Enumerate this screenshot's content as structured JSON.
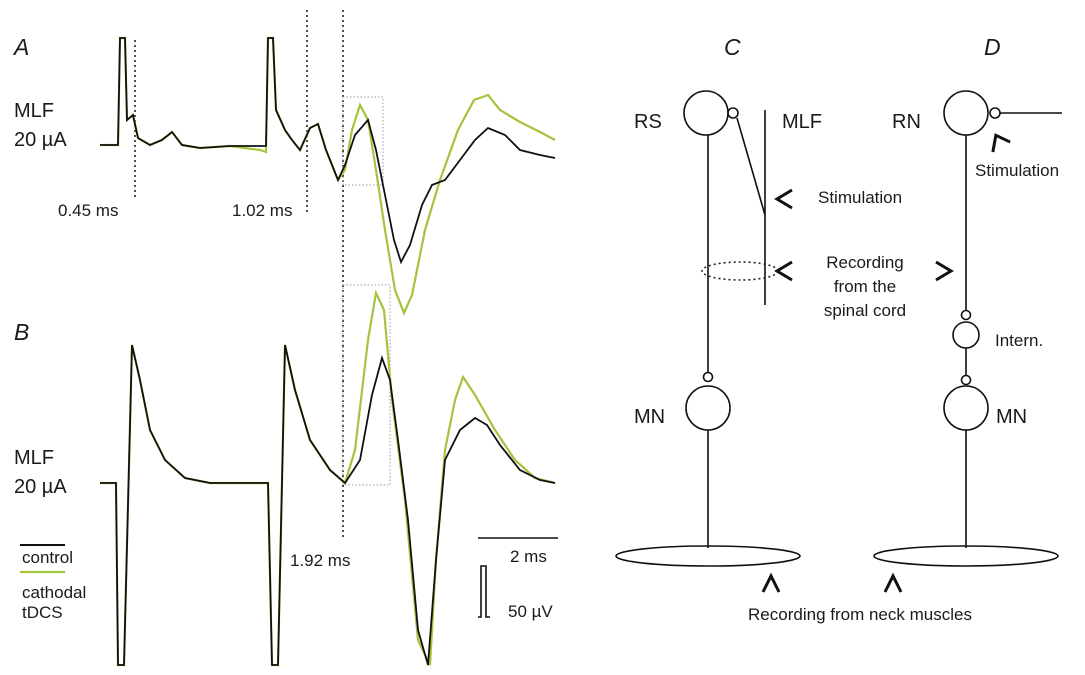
{
  "panel_a": {
    "label": "A",
    "stimulus": [
      "MLF",
      "20 µA"
    ],
    "latencies": [
      "0.45 ms",
      "1.02 ms"
    ]
  },
  "panel_b": {
    "label": "B",
    "stimulus": [
      "MLF",
      "20 µA"
    ],
    "latencies": [
      "1.92 ms"
    ]
  },
  "legend": {
    "control": "control",
    "tdcs": [
      "cathodal",
      "tDCS"
    ]
  },
  "scale_bars": {
    "time": "2 ms",
    "voltage": "50 µV"
  },
  "panel_c": {
    "label": "C",
    "rs": "RS",
    "mlf": "MLF",
    "stimulation": "Stimulation",
    "recording": [
      "Recording",
      "from the",
      "spinal cord"
    ],
    "mn": "MN"
  },
  "panel_d": {
    "label": "D",
    "rn": "RN",
    "stimulation": "Stimulation",
    "intern": "Intern.",
    "mn": "MN"
  },
  "muscle_recording": "Recording from neck muscles"
}
